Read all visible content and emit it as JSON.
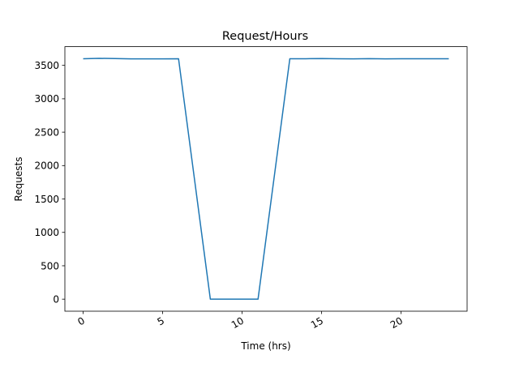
{
  "chart_data": {
    "type": "line",
    "title": "Request/Hours",
    "xlabel": "Time (hrs)",
    "ylabel": "Requests",
    "xlim": [
      -1.15,
      24.15
    ],
    "ylim": [
      -180,
      3780
    ],
    "xticks": [
      0,
      5,
      10,
      15,
      20
    ],
    "yticks": [
      0,
      500,
      1000,
      1500,
      2000,
      2500,
      3000,
      3500
    ],
    "grid": false,
    "series": [
      {
        "color": "#1f77b4",
        "x": [
          0,
          1,
          2,
          3,
          4,
          5,
          6,
          7,
          8,
          9,
          10,
          11,
          12,
          13,
          14,
          15,
          16,
          17,
          18,
          19,
          20,
          21,
          22,
          23
        ],
        "y": [
          3600,
          3605,
          3603,
          3597,
          3598,
          3598,
          3600,
          1800,
          0,
          0,
          0,
          0,
          1800,
          3600,
          3600,
          3603,
          3600,
          3597,
          3601,
          3598,
          3600,
          3600,
          3599,
          3600
        ]
      }
    ]
  }
}
